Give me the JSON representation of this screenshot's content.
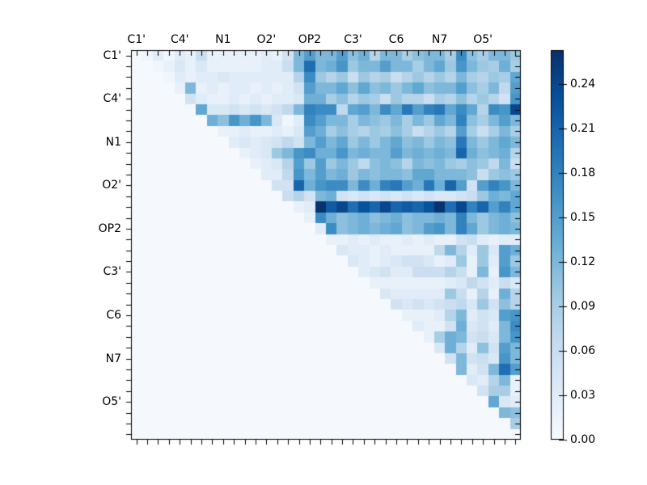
{
  "figure": {
    "title": "",
    "background_color": "#ffffff",
    "axis_color": "#000000",
    "empty_cell_color": "#f5f9fd",
    "colormap_max_color": "#08306b",
    "colormap_min_color": "#f7fbff"
  },
  "chart_data": {
    "type": "heatmap",
    "matrix_size": 36,
    "colormap": "Blues",
    "vmin": 0.0,
    "vmax": 0.263,
    "x_tick_labels": [
      "C1'",
      "C4'",
      "N1",
      "O2'",
      "OP2",
      "C3'",
      "C6",
      "N7",
      "O5'"
    ],
    "y_tick_labels": [
      "C1'",
      "C4'",
      "N1",
      "O2'",
      "OP2",
      "C3'",
      "C6",
      "N7",
      "O5'"
    ],
    "tick_label_cells": [
      0,
      4,
      8,
      12,
      16,
      20,
      24,
      28,
      32
    ],
    "colorbar": {
      "tick_labels": [
        "0.00",
        "0.03",
        "0.06",
        "0.09",
        "0.12",
        "0.15",
        "0.18",
        "0.21",
        "0.24"
      ],
      "tick_values": [
        0.0,
        0.03,
        0.06,
        0.09,
        0.12,
        0.15,
        0.18,
        0.21,
        0.24
      ]
    },
    "values": [
      [
        0,
        0.01,
        0.03,
        0.01,
        0.03,
        0.02,
        0.06,
        0.02,
        0.02,
        0.02,
        0.02,
        0.02,
        0.03,
        0.02,
        0.05,
        0.12,
        0.15,
        0.12,
        0.12,
        0.15,
        0.11,
        0.13,
        0.08,
        0.12,
        0.12,
        0.09,
        0.11,
        0.12,
        0.12,
        0.09,
        0.17,
        0.11,
        0.09,
        0.12,
        0.12,
        0.1
      ],
      [
        0,
        0,
        0.01,
        0.02,
        0.04,
        0.02,
        0.04,
        0.02,
        0.02,
        0.02,
        0.02,
        0.02,
        0.03,
        0.03,
        0.06,
        0.12,
        0.2,
        0.12,
        0.13,
        0.16,
        0.1,
        0.12,
        0.12,
        0.15,
        0.12,
        0.12,
        0.09,
        0.12,
        0.14,
        0.1,
        0.16,
        0.12,
        0.1,
        0.09,
        0.13,
        0.09
      ],
      [
        0,
        0,
        0,
        0.01,
        0.03,
        0.02,
        0.03,
        0.03,
        0.04,
        0.03,
        0.03,
        0.03,
        0.03,
        0.03,
        0.03,
        0.08,
        0.17,
        0.1,
        0.08,
        0.1,
        0.06,
        0.1,
        0.08,
        0.09,
        0.06,
        0.08,
        0.1,
        0.08,
        0.1,
        0.08,
        0.12,
        0.09,
        0.08,
        0.1,
        0.09,
        0.14
      ],
      [
        0,
        0,
        0,
        0,
        0.02,
        0.12,
        0.02,
        0.03,
        0.02,
        0.03,
        0.03,
        0.02,
        0.03,
        0.02,
        0.03,
        0.05,
        0.15,
        0.12,
        0.12,
        0.14,
        0.11,
        0.14,
        0.11,
        0.12,
        0.1,
        0.12,
        0.14,
        0.11,
        0.12,
        0.12,
        0.15,
        0.11,
        0.09,
        0.12,
        0.07,
        0.15
      ],
      [
        0,
        0,
        0,
        0,
        0,
        0.05,
        0.03,
        0.02,
        0.02,
        0.03,
        0.02,
        0.03,
        0.02,
        0.03,
        0.03,
        0.04,
        0.13,
        0.13,
        0.09,
        0.11,
        0.08,
        0.1,
        0.09,
        0.06,
        0.1,
        0.08,
        0.08,
        0.06,
        0.09,
        0.08,
        0.11,
        0.08,
        0.1,
        0.08,
        0.05,
        0.16
      ],
      [
        0,
        0,
        0,
        0,
        0,
        0,
        0.14,
        0.04,
        0.04,
        0.05,
        0.04,
        0.05,
        0.04,
        0.05,
        0.07,
        0.12,
        0.18,
        0.17,
        0.17,
        0.07,
        0.14,
        0.15,
        0.12,
        0.17,
        0.14,
        0.19,
        0.15,
        0.18,
        0.19,
        0.14,
        0.17,
        0.14,
        0.08,
        0.17,
        0.16,
        0.24
      ],
      [
        0,
        0,
        0,
        0,
        0,
        0,
        0,
        0.13,
        0.11,
        0.16,
        0.13,
        0.16,
        0.12,
        0.04,
        0.01,
        0.03,
        0.17,
        0.15,
        0.12,
        0.12,
        0.09,
        0.12,
        0.11,
        0.1,
        0.12,
        0.09,
        0.12,
        0.1,
        0.14,
        0.12,
        0.18,
        0.11,
        0.09,
        0.12,
        0.15,
        0.12
      ],
      [
        0,
        0,
        0,
        0,
        0,
        0,
        0,
        0,
        0.02,
        0.02,
        0.03,
        0.02,
        0.02,
        0.03,
        0.02,
        0.04,
        0.15,
        0.13,
        0.09,
        0.11,
        0.09,
        0.08,
        0.1,
        0.09,
        0.11,
        0.09,
        0.06,
        0.08,
        0.1,
        0.08,
        0.15,
        0.09,
        0.06,
        0.09,
        0.12,
        0.09
      ],
      [
        0,
        0,
        0,
        0,
        0,
        0,
        0,
        0,
        0,
        0.03,
        0.04,
        0.03,
        0.04,
        0.05,
        0.07,
        0.05,
        0.12,
        0.15,
        0.12,
        0.14,
        0.1,
        0.12,
        0.1,
        0.12,
        0.14,
        0.11,
        0.12,
        0.1,
        0.12,
        0.11,
        0.19,
        0.12,
        0.1,
        0.12,
        0.14,
        0.12
      ],
      [
        0,
        0,
        0,
        0,
        0,
        0,
        0,
        0,
        0,
        0,
        0.02,
        0.03,
        0.04,
        0.1,
        0.12,
        0.16,
        0.17,
        0.13,
        0.13,
        0.16,
        0.12,
        0.13,
        0.12,
        0.12,
        0.15,
        0.12,
        0.13,
        0.12,
        0.13,
        0.12,
        0.21,
        0.13,
        0.11,
        0.12,
        0.13,
        0.08
      ],
      [
        0,
        0,
        0,
        0,
        0,
        0,
        0,
        0,
        0,
        0,
        0,
        0.02,
        0.03,
        0.04,
        0.08,
        0.15,
        0.1,
        0.15,
        0.1,
        0.12,
        0.1,
        0.07,
        0.11,
        0.12,
        0.11,
        0.08,
        0.12,
        0.11,
        0.12,
        0.1,
        0.09,
        0.11,
        0.1,
        0.07,
        0.12,
        0.06
      ],
      [
        0,
        0,
        0,
        0,
        0,
        0,
        0,
        0,
        0,
        0,
        0,
        0,
        0.03,
        0.03,
        0.07,
        0.16,
        0.12,
        0.15,
        0.12,
        0.13,
        0.1,
        0.12,
        0.11,
        0.12,
        0.12,
        0.11,
        0.14,
        0.14,
        0.12,
        0.12,
        0.12,
        0.11,
        0.06,
        0.1,
        0.11,
        0.1
      ],
      [
        0,
        0,
        0,
        0,
        0,
        0,
        0,
        0,
        0,
        0,
        0,
        0,
        0,
        0.05,
        0.05,
        0.21,
        0.13,
        0.16,
        0.17,
        0.17,
        0.12,
        0.17,
        0.13,
        0.18,
        0.19,
        0.15,
        0.13,
        0.19,
        0.13,
        0.21,
        0.15,
        0.05,
        0.15,
        0.18,
        0.16,
        0.12
      ],
      [
        0,
        0,
        0,
        0,
        0,
        0,
        0,
        0,
        0,
        0,
        0,
        0,
        0,
        0,
        0.06,
        0.08,
        0.05,
        0.12,
        0.13,
        0.05,
        0.04,
        0.05,
        0.04,
        0.05,
        0.04,
        0.05,
        0.04,
        0.05,
        0.04,
        0.04,
        0.05,
        0.06,
        0.1,
        0.13,
        0.12,
        0.14
      ],
      [
        0,
        0,
        0,
        0,
        0,
        0,
        0,
        0,
        0,
        0,
        0,
        0,
        0,
        0,
        0,
        0.02,
        0.03,
        0.26,
        0.22,
        0.24,
        0.2,
        0.23,
        0.21,
        0.24,
        0.21,
        0.22,
        0.21,
        0.23,
        0.26,
        0.2,
        0.24,
        0.18,
        0.21,
        0.15,
        0.18,
        0.14
      ],
      [
        0,
        0,
        0,
        0,
        0,
        0,
        0,
        0,
        0,
        0,
        0,
        0,
        0,
        0,
        0,
        0,
        0.02,
        0.17,
        0.13,
        0.11,
        0.12,
        0.13,
        0.11,
        0.12,
        0.13,
        0.11,
        0.12,
        0.12,
        0.13,
        0.12,
        0.18,
        0.12,
        0.1,
        0.12,
        0.13,
        0.11
      ],
      [
        0,
        0,
        0,
        0,
        0,
        0,
        0,
        0,
        0,
        0,
        0,
        0,
        0,
        0,
        0,
        0,
        0,
        0.03,
        0.17,
        0.11,
        0.12,
        0.13,
        0.12,
        0.13,
        0.14,
        0.11,
        0.12,
        0.15,
        0.16,
        0.12,
        0.18,
        0.14,
        0.1,
        0.12,
        0.13,
        0.12
      ],
      [
        0,
        0,
        0,
        0,
        0,
        0,
        0,
        0,
        0,
        0,
        0,
        0,
        0,
        0,
        0,
        0,
        0,
        0,
        0.02,
        0.02,
        0.03,
        0.02,
        0.03,
        0.02,
        0.02,
        0.03,
        0.02,
        0.03,
        0.02,
        0.02,
        0.05,
        0.06,
        0.03,
        0.02,
        0.03,
        0.03
      ],
      [
        0,
        0,
        0,
        0,
        0,
        0,
        0,
        0,
        0,
        0,
        0,
        0,
        0,
        0,
        0,
        0,
        0,
        0,
        0,
        0.04,
        0.03,
        0.03,
        0.02,
        0.03,
        0.02,
        0.02,
        0.02,
        0.02,
        0.07,
        0.12,
        0.08,
        0.03,
        0.1,
        0.04,
        0.15,
        0.13
      ],
      [
        0,
        0,
        0,
        0,
        0,
        0,
        0,
        0,
        0,
        0,
        0,
        0,
        0,
        0,
        0,
        0,
        0,
        0,
        0,
        0,
        0.04,
        0.03,
        0.02,
        0.03,
        0.04,
        0.05,
        0.05,
        0.04,
        0.02,
        0.03,
        0.1,
        0.02,
        0.1,
        0.03,
        0.15,
        0.1
      ],
      [
        0,
        0,
        0,
        0,
        0,
        0,
        0,
        0,
        0,
        0,
        0,
        0,
        0,
        0,
        0,
        0,
        0,
        0,
        0,
        0,
        0,
        0.03,
        0.04,
        0.05,
        0.03,
        0.03,
        0.06,
        0.06,
        0.06,
        0.08,
        0.06,
        0.02,
        0.12,
        0.02,
        0.16,
        0.12
      ],
      [
        0,
        0,
        0,
        0,
        0,
        0,
        0,
        0,
        0,
        0,
        0,
        0,
        0,
        0,
        0,
        0,
        0,
        0,
        0,
        0,
        0,
        0,
        0.02,
        0.02,
        0.02,
        0.02,
        0.02,
        0.02,
        0.02,
        0.03,
        0.04,
        0.07,
        0.05,
        0.03,
        0.06,
        0.04
      ],
      [
        0,
        0,
        0,
        0,
        0,
        0,
        0,
        0,
        0,
        0,
        0,
        0,
        0,
        0,
        0,
        0,
        0,
        0,
        0,
        0,
        0,
        0,
        0,
        0.04,
        0.03,
        0.03,
        0.03,
        0.03,
        0.03,
        0.1,
        0.06,
        0.02,
        0.08,
        0.02,
        0.13,
        0.08
      ],
      [
        0,
        0,
        0,
        0,
        0,
        0,
        0,
        0,
        0,
        0,
        0,
        0,
        0,
        0,
        0,
        0,
        0,
        0,
        0,
        0,
        0,
        0,
        0,
        0,
        0.05,
        0.04,
        0.05,
        0.04,
        0.05,
        0.06,
        0.07,
        0.04,
        0.1,
        0.05,
        0.11,
        0.08
      ],
      [
        0,
        0,
        0,
        0,
        0,
        0,
        0,
        0,
        0,
        0,
        0,
        0,
        0,
        0,
        0,
        0,
        0,
        0,
        0,
        0,
        0,
        0,
        0,
        0,
        0,
        0.02,
        0.02,
        0.02,
        0.03,
        0.08,
        0.12,
        0.03,
        0.05,
        0.04,
        0.15,
        0.16
      ],
      [
        0,
        0,
        0,
        0,
        0,
        0,
        0,
        0,
        0,
        0,
        0,
        0,
        0,
        0,
        0,
        0,
        0,
        0,
        0,
        0,
        0,
        0,
        0,
        0,
        0,
        0,
        0.03,
        0.02,
        0.02,
        0.05,
        0.13,
        0.04,
        0.05,
        0.03,
        0.12,
        0.17
      ],
      [
        0,
        0,
        0,
        0,
        0,
        0,
        0,
        0,
        0,
        0,
        0,
        0,
        0,
        0,
        0,
        0,
        0,
        0,
        0,
        0,
        0,
        0,
        0,
        0,
        0,
        0,
        0,
        0.02,
        0.09,
        0.13,
        0.12,
        0.05,
        0.06,
        0.04,
        0.12,
        0.16
      ],
      [
        0,
        0,
        0,
        0,
        0,
        0,
        0,
        0,
        0,
        0,
        0,
        0,
        0,
        0,
        0,
        0,
        0,
        0,
        0,
        0,
        0,
        0,
        0,
        0,
        0,
        0,
        0,
        0,
        0.04,
        0.13,
        0.08,
        0.03,
        0.11,
        0.05,
        0.15,
        0.12
      ],
      [
        0,
        0,
        0,
        0,
        0,
        0,
        0,
        0,
        0,
        0,
        0,
        0,
        0,
        0,
        0,
        0,
        0,
        0,
        0,
        0,
        0,
        0,
        0,
        0,
        0,
        0,
        0,
        0,
        0,
        0.05,
        0.12,
        0.05,
        0.06,
        0.04,
        0.16,
        0.12
      ],
      [
        0,
        0,
        0,
        0,
        0,
        0,
        0,
        0,
        0,
        0,
        0,
        0,
        0,
        0,
        0,
        0,
        0,
        0,
        0,
        0,
        0,
        0,
        0,
        0,
        0,
        0,
        0,
        0,
        0,
        0,
        0.12,
        0.03,
        0.05,
        0.12,
        0.2,
        0.15
      ],
      [
        0,
        0,
        0,
        0,
        0,
        0,
        0,
        0,
        0,
        0,
        0,
        0,
        0,
        0,
        0,
        0,
        0,
        0,
        0,
        0,
        0,
        0,
        0,
        0,
        0,
        0,
        0,
        0,
        0,
        0,
        0,
        0.04,
        0.03,
        0.08,
        0.12,
        0.02
      ],
      [
        0,
        0,
        0,
        0,
        0,
        0,
        0,
        0,
        0,
        0,
        0,
        0,
        0,
        0,
        0,
        0,
        0,
        0,
        0,
        0,
        0,
        0,
        0,
        0,
        0,
        0,
        0,
        0,
        0,
        0,
        0,
        0,
        0.05,
        0.09,
        0.09,
        0.02
      ],
      [
        0,
        0,
        0,
        0,
        0,
        0,
        0,
        0,
        0,
        0,
        0,
        0,
        0,
        0,
        0,
        0,
        0,
        0,
        0,
        0,
        0,
        0,
        0,
        0,
        0,
        0,
        0,
        0,
        0,
        0,
        0,
        0,
        0,
        0.14,
        0.04,
        0.03
      ],
      [
        0,
        0,
        0,
        0,
        0,
        0,
        0,
        0,
        0,
        0,
        0,
        0,
        0,
        0,
        0,
        0,
        0,
        0,
        0,
        0,
        0,
        0,
        0,
        0,
        0,
        0,
        0,
        0,
        0,
        0,
        0,
        0,
        0,
        0,
        0.12,
        0.11
      ],
      [
        0,
        0,
        0,
        0,
        0,
        0,
        0,
        0,
        0,
        0,
        0,
        0,
        0,
        0,
        0,
        0,
        0,
        0,
        0,
        0,
        0,
        0,
        0,
        0,
        0,
        0,
        0,
        0,
        0,
        0,
        0,
        0,
        0,
        0,
        0,
        0.09
      ],
      [
        0,
        0,
        0,
        0,
        0,
        0,
        0,
        0,
        0,
        0,
        0,
        0,
        0,
        0,
        0,
        0,
        0,
        0,
        0,
        0,
        0,
        0,
        0,
        0,
        0,
        0,
        0,
        0,
        0,
        0,
        0,
        0,
        0,
        0,
        0,
        0
      ]
    ]
  }
}
